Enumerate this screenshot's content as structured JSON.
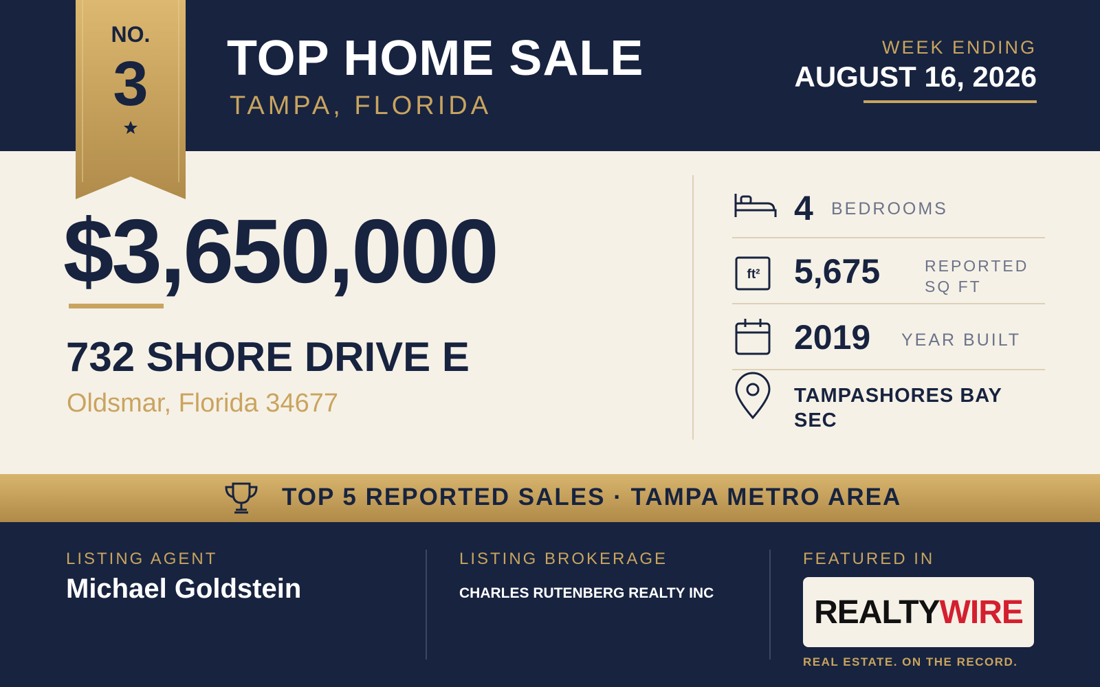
{
  "badge": {
    "prefix": "NO.",
    "rank": "3"
  },
  "header": {
    "title": "TOP HOME SALE",
    "location": "TAMPA, FLORIDA",
    "week_label": "WEEK ENDING",
    "week_date": "AUGUST 16, 2026"
  },
  "sale": {
    "price": "$3,650,000",
    "street": "732 SHORE DRIVE E",
    "city": "Oldsmar, Florida 34677"
  },
  "details": {
    "bedrooms": {
      "value": "4",
      "label": "BEDROOMS"
    },
    "area": {
      "icon": "ft²",
      "value": "5,675",
      "label": "REPORTED SQ FT"
    },
    "year": {
      "value": "2019",
      "label": "YEAR BUILT"
    },
    "subdivision": {
      "value": "TAMPASHORES BAY SEC"
    }
  },
  "banner": "TOP 5 REPORTED SALES · TAMPA METRO AREA",
  "footer": {
    "agent_label": "LISTING AGENT",
    "agent": "Michael Goldstein",
    "brokerage_label": "LISTING BROKERAGE",
    "brokerage": "CHARLES RUTENBERG REALTY INC",
    "featured_label": "FEATURED IN",
    "logo_first": "REALTY",
    "logo_second": "WIRE",
    "tagline": "REAL ESTATE. ON THE RECORD."
  }
}
